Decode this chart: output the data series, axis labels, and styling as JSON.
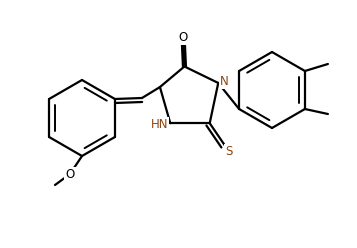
{
  "bg_color": "#ffffff",
  "line_color": "#000000",
  "N_color": "#8B4513",
  "S_color": "#8B4513",
  "line_width": 1.6,
  "font_size": 8.5,
  "figsize": [
    3.57,
    2.48
  ],
  "dpi": 100,
  "xlim": [
    0.0,
    3.57
  ],
  "ylim": [
    0.0,
    2.48
  ]
}
